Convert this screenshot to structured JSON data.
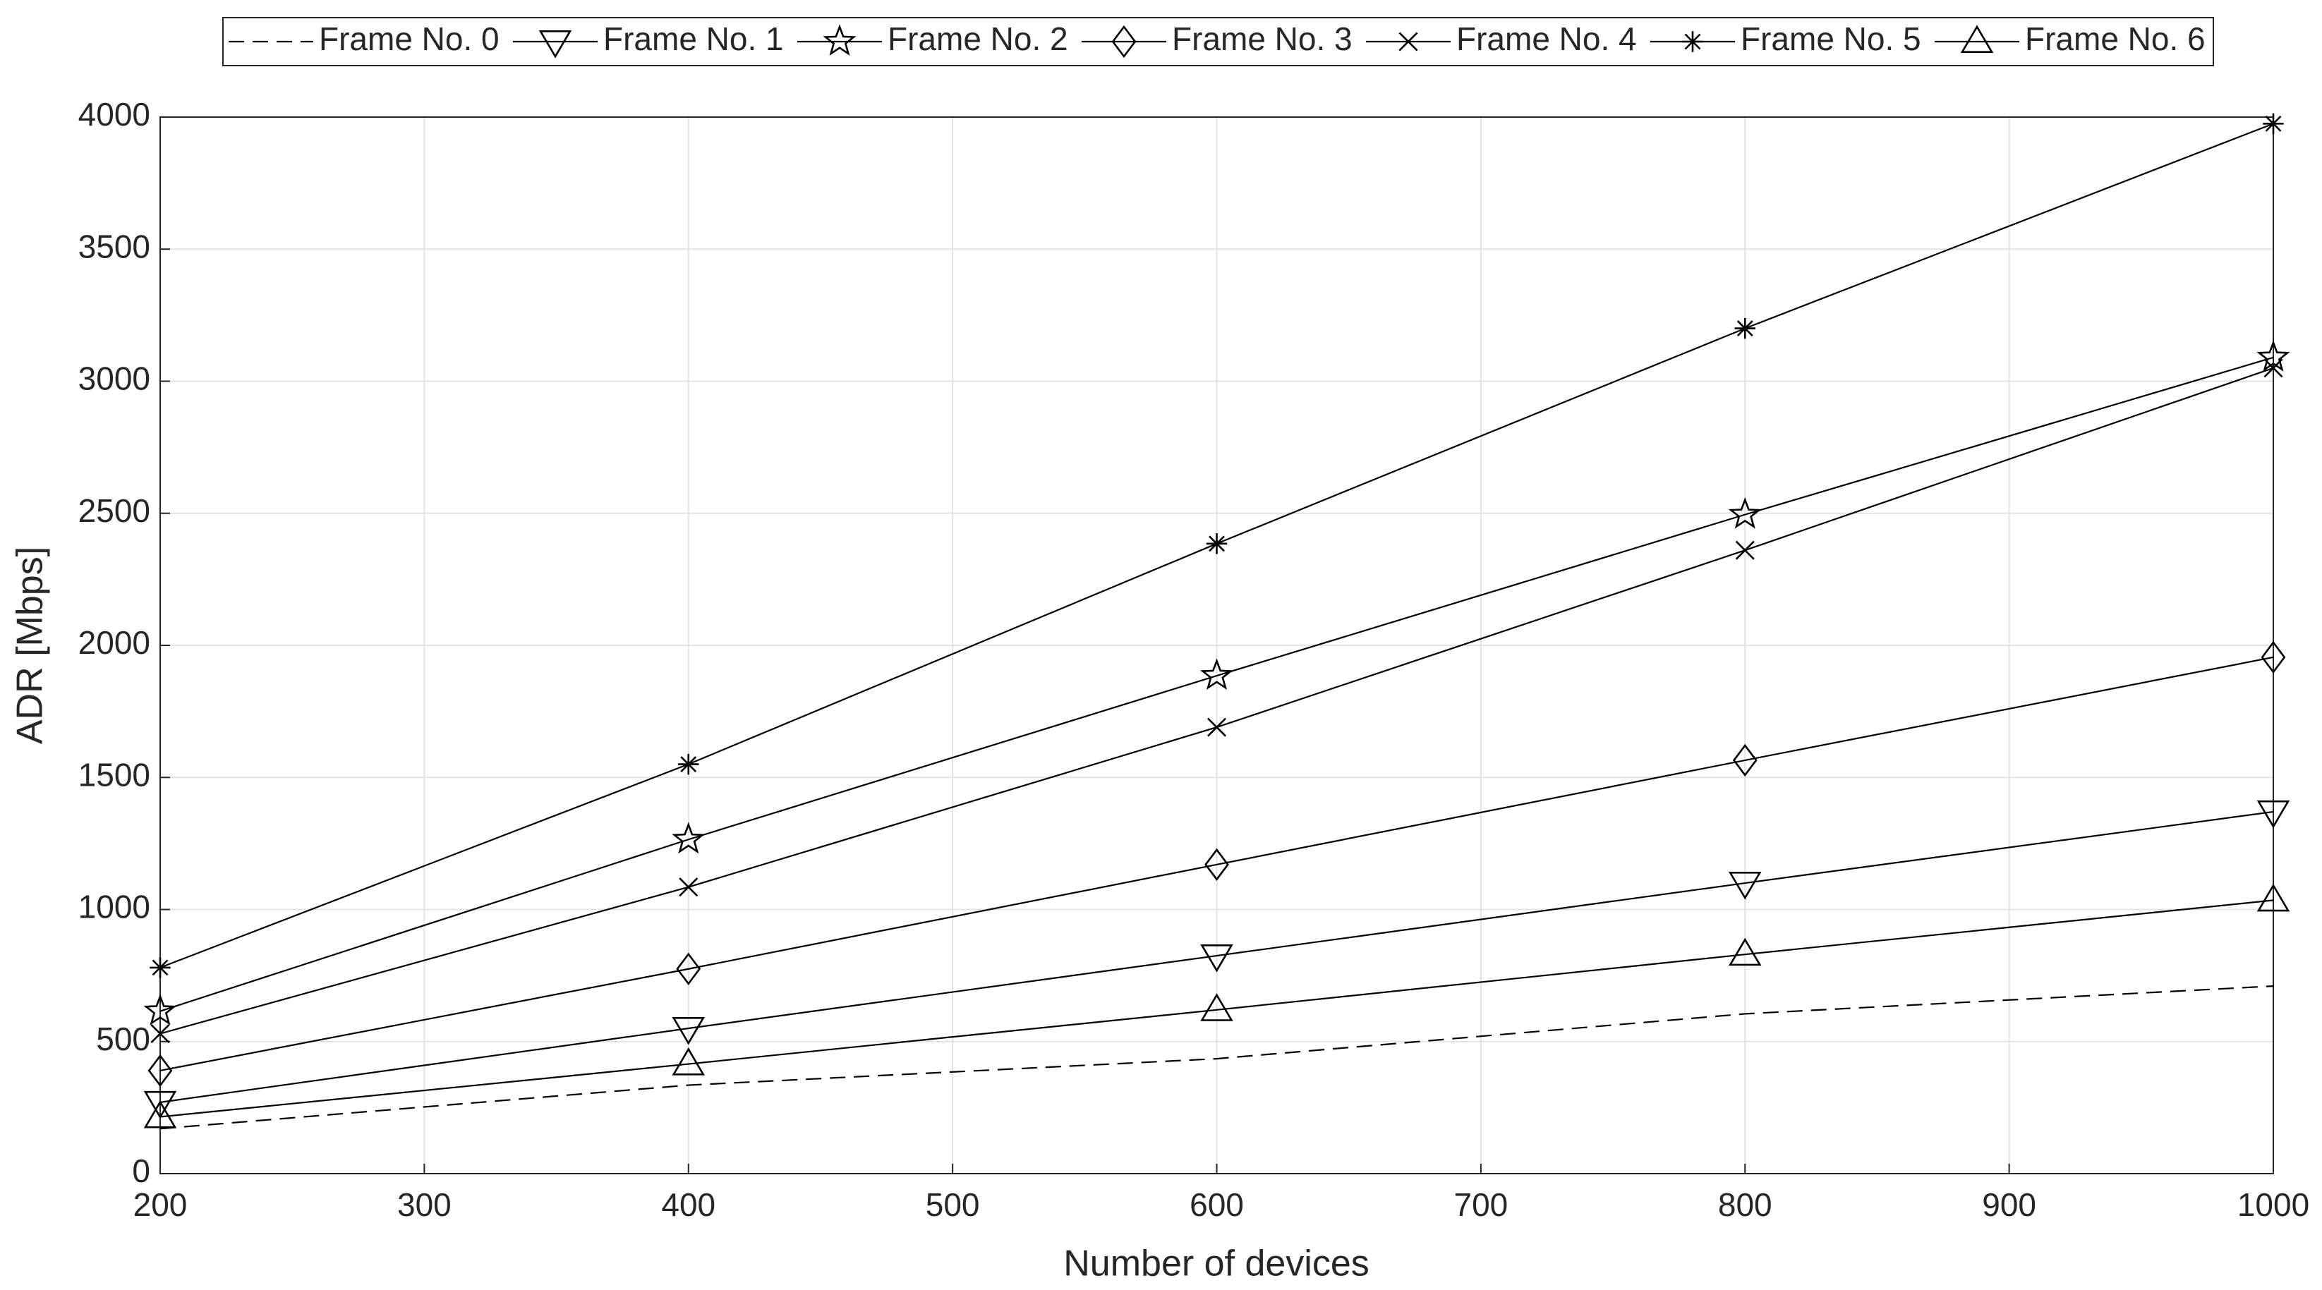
{
  "chart_data": {
    "type": "line",
    "x_label": "Number of devices",
    "y_label": "ADR [Mbps]",
    "x": [
      200,
      400,
      600,
      800,
      1000
    ],
    "xlim": [
      200,
      1000
    ],
    "xticks": [
      200,
      300,
      400,
      500,
      600,
      700,
      800,
      900,
      1000
    ],
    "ylim": [
      0,
      4000
    ],
    "yticks": [
      0,
      500,
      1000,
      1500,
      2000,
      2500,
      3000,
      3500,
      4000
    ],
    "grid": true,
    "legend": "top",
    "series": [
      {
        "name": "Frame No. 0",
        "color": "#000000",
        "marker": "none",
        "dash": true,
        "values": [
          170,
          335,
          435,
          605,
          710
        ]
      },
      {
        "name": "Frame No. 1",
        "color": "#000000",
        "marker": "triangle-down",
        "values": [
          270,
          550,
          825,
          1100,
          1370
        ]
      },
      {
        "name": "Frame No. 2",
        "color": "#000000",
        "marker": "star",
        "values": [
          615,
          1265,
          1885,
          2495,
          3090
        ]
      },
      {
        "name": "Frame No. 3",
        "color": "#000000",
        "marker": "diamond",
        "values": [
          390,
          775,
          1170,
          1565,
          1955
        ]
      },
      {
        "name": "Frame No. 4",
        "color": "#000000",
        "marker": "x",
        "values": [
          530,
          1085,
          1690,
          2360,
          3050
        ]
      },
      {
        "name": "Frame No. 5",
        "color": "#000000",
        "marker": "asterisk",
        "values": [
          780,
          1550,
          2385,
          3200,
          3975
        ]
      },
      {
        "name": "Frame No. 6",
        "color": "#000000",
        "marker": "triangle-up",
        "values": [
          215,
          415,
          620,
          830,
          1035
        ]
      }
    ]
  }
}
